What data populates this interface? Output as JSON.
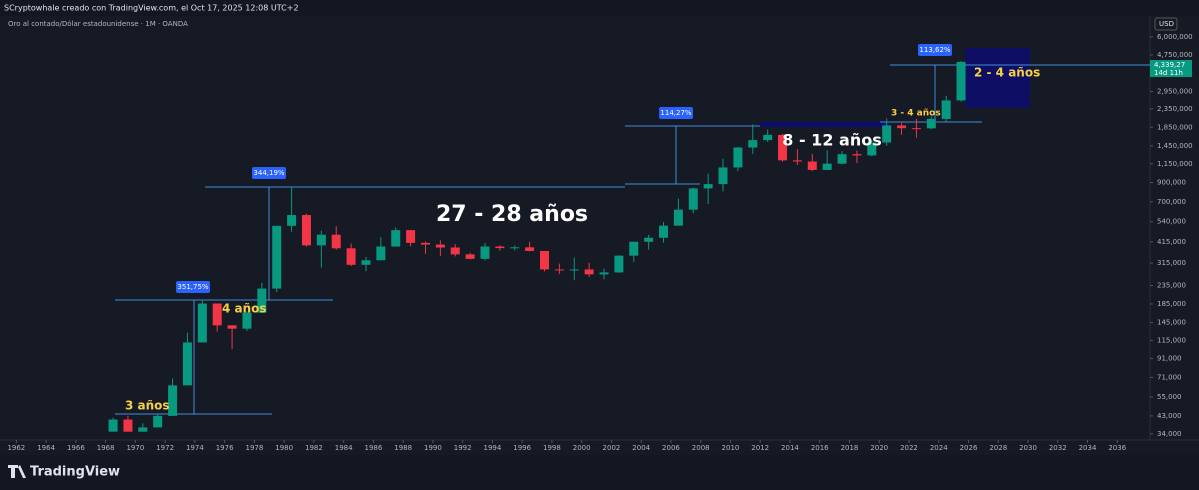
{
  "header": {
    "author_line": "SCryptowhale creado con TradingView.com, el Oct 17, 2025 12:08 UTC+2",
    "symbol_line": "Oro al contado/Dólar estadounidense · 1M · OANDA"
  },
  "currency": "USD",
  "price_label": "4,339,27",
  "countdown": "14d 11h",
  "logo": "TradingView",
  "chart_data": {
    "type": "candlestick",
    "log_scale": true,
    "up_color": "#089981",
    "down_color": "#f23645",
    "x": [
      1968,
      1969,
      1970,
      1971,
      1972,
      1973,
      1974,
      1975,
      1976,
      1977,
      1978,
      1979,
      1980,
      1981,
      1982,
      1983,
      1984,
      1985,
      1986,
      1987,
      1988,
      1989,
      1990,
      1991,
      1992,
      1993,
      1994,
      1995,
      1996,
      1997,
      1998,
      1999,
      2000,
      2001,
      2002,
      2003,
      2004,
      2005,
      2006,
      2007,
      2008,
      2009,
      2010,
      2011,
      2012,
      2013,
      2014,
      2015,
      2016,
      2017,
      2018,
      2019,
      2020,
      2021,
      2022,
      2023,
      2024,
      2025
    ],
    "open": [
      35,
      41,
      35,
      37,
      43,
      64,
      112,
      186,
      140,
      134,
      165,
      226,
      512,
      589,
      397,
      456,
      382,
      308,
      327,
      391,
      484,
      410,
      401,
      386,
      353,
      333,
      391,
      383,
      387,
      369,
      290,
      288,
      290,
      272,
      279,
      347,
      416,
      438,
      513,
      632,
      834,
      882,
      1096,
      1421,
      1565,
      1675,
      1202,
      1184,
      1061,
      1151,
      1303,
      1282,
      1517,
      1895,
      1829,
      1824,
      2063,
      2625
    ],
    "high": [
      42,
      43,
      39,
      44,
      70,
      127,
      195,
      186,
      140,
      168,
      243,
      512,
      850,
      599,
      481,
      509,
      406,
      341,
      442,
      502,
      485,
      418,
      424,
      403,
      360,
      409,
      397,
      396,
      415,
      369,
      313,
      338,
      316,
      293,
      349,
      416,
      456,
      538,
      730,
      842,
      1011,
      1227,
      1431,
      1921,
      1795,
      1696,
      1392,
      1307,
      1375,
      1357,
      1366,
      1557,
      2075,
      1959,
      2070,
      2135,
      2790,
      4380
    ],
    "low": [
      35,
      35,
      35,
      37,
      43,
      64,
      112,
      129,
      103,
      130,
      165,
      216,
      474,
      391,
      297,
      374,
      303,
      284,
      326,
      390,
      392,
      355,
      345,
      344,
      330,
      326,
      370,
      372,
      367,
      283,
      273,
      252,
      263,
      255,
      277,
      319,
      375,
      411,
      513,
      603,
      681,
      802,
      1044,
      1308,
      1527,
      1180,
      1131,
      1046,
      1061,
      1146,
      1160,
      1266,
      1451,
      1677,
      1615,
      1805,
      1984,
      2584
    ],
    "close": [
      41,
      35,
      37,
      43,
      64,
      112,
      186,
      140,
      134,
      165,
      226,
      512,
      589,
      397,
      456,
      382,
      308,
      327,
      391,
      484,
      410,
      401,
      386,
      353,
      333,
      391,
      383,
      387,
      369,
      290,
      288,
      290,
      272,
      279,
      347,
      416,
      438,
      513,
      632,
      834,
      882,
      1096,
      1421,
      1565,
      1675,
      1202,
      1184,
      1061,
      1151,
      1303,
      1282,
      1517,
      1895,
      1829,
      1824,
      2063,
      2625,
      4339
    ],
    "xlim": [
      1960.9,
      2038.2
    ],
    "xticks": [
      1962,
      1964,
      1966,
      1968,
      1970,
      1972,
      1974,
      1976,
      1978,
      1980,
      1982,
      1984,
      1986,
      1988,
      1990,
      1992,
      1994,
      1996,
      1998,
      2000,
      2002,
      2004,
      2006,
      2008,
      2010,
      2012,
      2014,
      2016,
      2018,
      2020,
      2022,
      2024,
      2026,
      2028,
      2030,
      2032,
      2034,
      2036
    ],
    "ylim": [
      31.4,
      7890
    ],
    "yticks": [
      {
        "value": 6000,
        "label": "6,000,000"
      },
      {
        "value": 4750,
        "label": "4,750,000"
      },
      {
        "value": 3700,
        "label": "3,700,000"
      },
      {
        "value": 2950,
        "label": "2,950,000"
      },
      {
        "value": 2350,
        "label": "2,350,000"
      },
      {
        "value": 1850,
        "label": "1,850,000"
      },
      {
        "value": 1450,
        "label": "1,450,000"
      },
      {
        "value": 1150,
        "label": "1,150,000"
      },
      {
        "value": 900,
        "label": "900,000"
      },
      {
        "value": 700,
        "label": "700,000"
      },
      {
        "value": 540,
        "label": "540,000"
      },
      {
        "value": 415,
        "label": "415,000"
      },
      {
        "value": 315,
        "label": "315,000"
      },
      {
        "value": 235,
        "label": "235,000"
      },
      {
        "value": 185,
        "label": "185,000"
      },
      {
        "value": 145,
        "label": "145,000"
      },
      {
        "value": 115,
        "label": "115,000"
      },
      {
        "value": 91,
        "label": "91,000"
      },
      {
        "value": 71,
        "label": "71,000"
      },
      {
        "value": 55,
        "label": "55,000"
      },
      {
        "value": 43,
        "label": "43,000"
      },
      {
        "value": 34,
        "label": "34,000"
      }
    ],
    "percent_boxes": [
      "351,75%",
      "344,19%",
      "114,27%",
      "113,62%"
    ],
    "annotations": [
      "3 años",
      "4 años",
      "27 - 28 años",
      "8 - 12 años",
      "3 - 4 años",
      "2 - 4 años"
    ]
  }
}
